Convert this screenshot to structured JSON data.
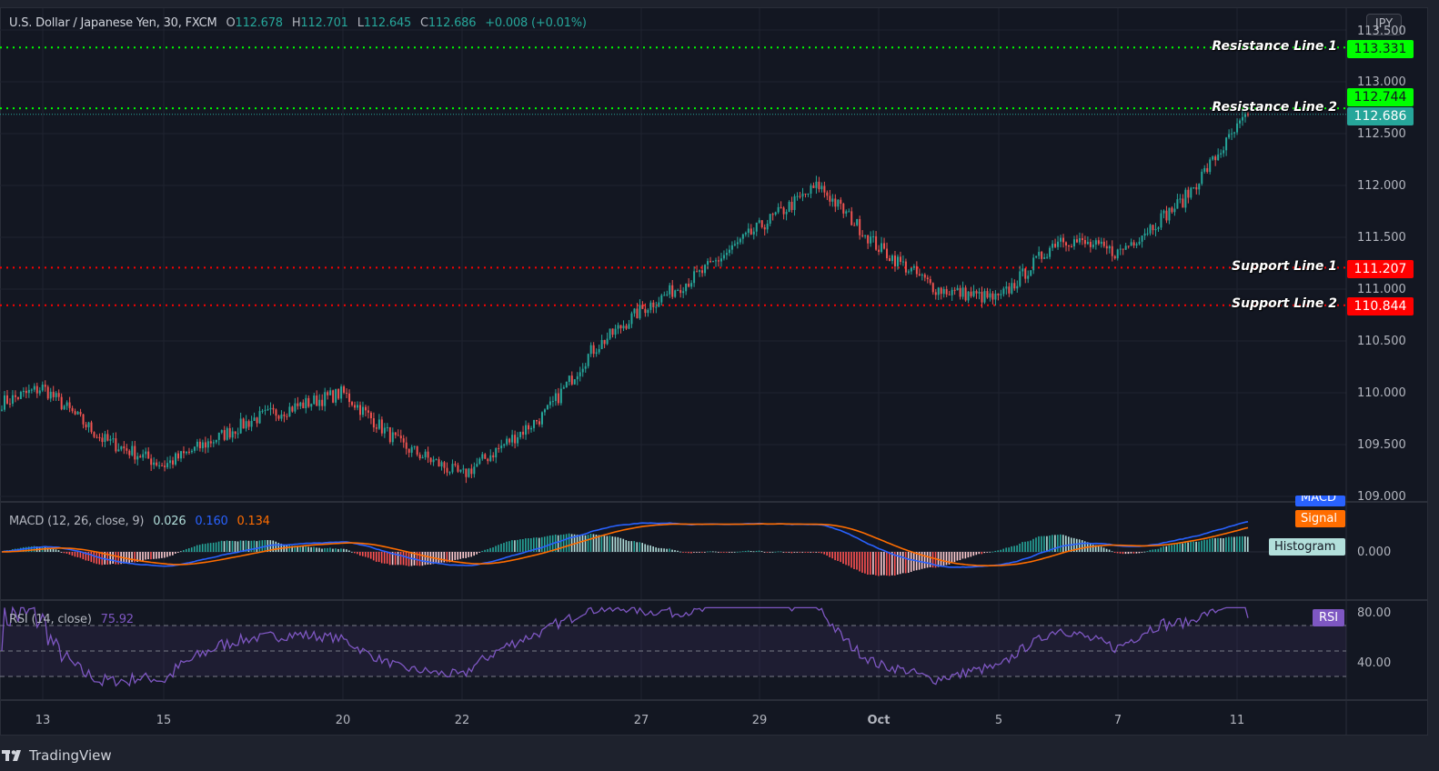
{
  "header": {
    "symbol_title": "U.S. Dollar / Japanese Yen, 30, FXCM",
    "ohlc": [
      {
        "key": "O",
        "value": "112.678"
      },
      {
        "key": "H",
        "value": "112.701"
      },
      {
        "key": "L",
        "value": "112.645"
      },
      {
        "key": "C",
        "value": "112.686"
      }
    ],
    "change": "+0.008 (+0.01%)"
  },
  "currency_button": "JPY",
  "price_axis": {
    "ticks": [
      "113.500",
      "113.000",
      "112.500",
      "112.000",
      "111.500",
      "111.000",
      "110.500",
      "110.000",
      "109.500",
      "109.000"
    ],
    "current_price": "112.686",
    "current_price_color": "#26a69a"
  },
  "horizontal_lines": [
    {
      "label": "Resistance Line 1",
      "price": "113.331",
      "color": "#00ff00",
      "text_color": "#131722"
    },
    {
      "label": "Resistance Line 2",
      "price": "112.744",
      "color": "#00ff00",
      "text_color": "#131722"
    },
    {
      "label": "Support Line 1",
      "price": "111.207",
      "color": "#ff0000",
      "text_color": "#ffffff"
    },
    {
      "label": "Support Line 2",
      "price": "110.844",
      "color": "#ff0000",
      "text_color": "#ffffff"
    }
  ],
  "macd": {
    "title": "MACD (12, 26, close, 9)",
    "histogram_value": "0.026",
    "macd_value": "0.160",
    "signal_value": "0.134",
    "tags": {
      "macd": "MACD",
      "signal": "Signal",
      "histogram": "Histogram"
    },
    "axis_tick": "0.000",
    "colors": {
      "macd": "#2962ff",
      "signal": "#ff6d00",
      "hist_up": "#26a69a",
      "hist_up_light": "#b2dfdb",
      "hist_down": "#ff5252",
      "hist_down_light": "#ffcdd2"
    }
  },
  "rsi": {
    "title": "RSI (14, close)",
    "value": "75.92",
    "tag": "RSI",
    "axis_ticks": [
      "80.00",
      "40.00"
    ],
    "color": "#7e57c2"
  },
  "time_axis": {
    "labels": [
      "13",
      "15",
      "20",
      "22",
      "27",
      "29",
      "Oct",
      "5",
      "7",
      "11"
    ]
  },
  "branding": {
    "name": "TradingView"
  },
  "chart_data": {
    "type": "candlestick",
    "title": "U.S. Dollar / Japanese Yen, 30, FXCM",
    "interval": "30 minutes",
    "xlabel": "",
    "ylabel": "JPY",
    "ylim": [
      108.9,
      113.5
    ],
    "grid": true,
    "x_tick_labels": [
      "13",
      "15",
      "20",
      "22",
      "27",
      "29",
      "Oct",
      "5",
      "7",
      "11"
    ],
    "last_bar": {
      "open": 112.678,
      "high": 112.701,
      "low": 112.645,
      "close": 112.686,
      "change": 0.008,
      "change_pct": 0.01
    },
    "approx_close_path": {
      "x": [
        "13",
        "14",
        "15",
        "16",
        "17",
        "20",
        "21",
        "22",
        "23",
        "24",
        "27",
        "28",
        "29",
        "30",
        "Oct",
        "4",
        "5",
        "6",
        "7",
        "8",
        "11"
      ],
      "close": [
        109.9,
        110.05,
        109.55,
        109.3,
        109.75,
        110.0,
        109.5,
        109.2,
        109.8,
        110.4,
        110.8,
        111.15,
        111.6,
        112.0,
        111.4,
        111.0,
        110.9,
        111.5,
        111.35,
        111.85,
        112.686
      ]
    },
    "horizontal_levels": [
      {
        "name": "Resistance Line 1",
        "value": 113.331
      },
      {
        "name": "Resistance Line 2",
        "value": 112.744
      },
      {
        "name": "Support Line 1",
        "value": 111.207
      },
      {
        "name": "Support Line 2",
        "value": 110.844
      }
    ],
    "indicators": [
      {
        "name": "MACD (12, 26, close, 9)",
        "histogram": 0.026,
        "macd": 0.16,
        "signal": 0.134,
        "zero_line": 0.0
      },
      {
        "name": "RSI (14, close)",
        "value": 75.92,
        "bands": [
          70,
          50,
          30
        ],
        "axis_ticks": [
          80,
          40
        ]
      }
    ]
  }
}
